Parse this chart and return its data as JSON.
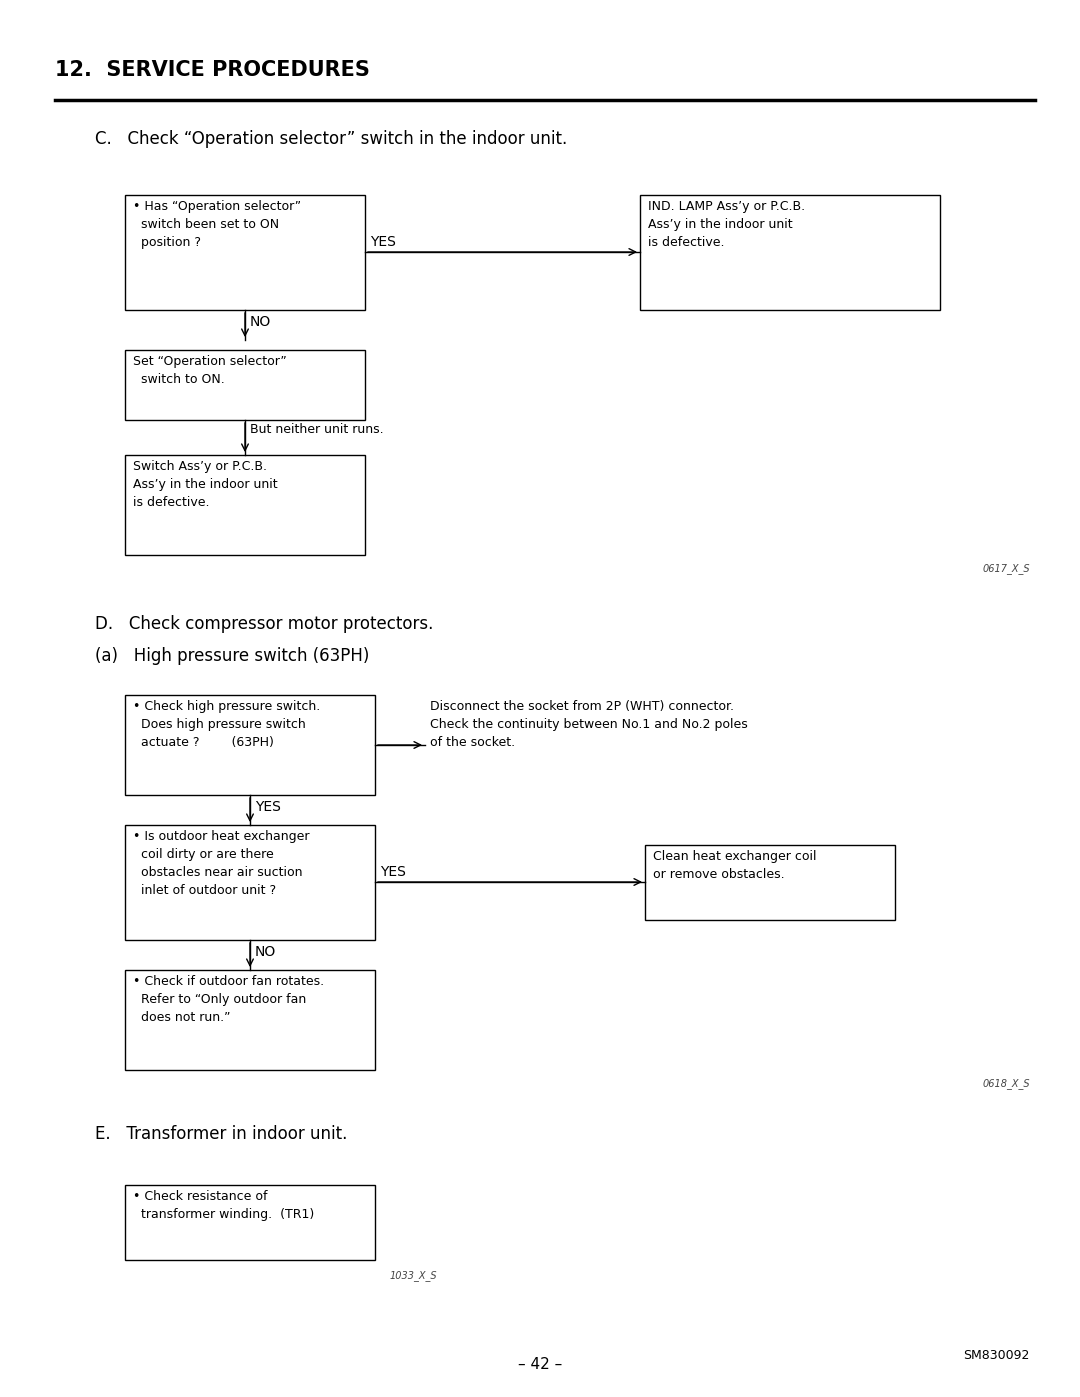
{
  "bg_color": "#ffffff",
  "title": "12.  SERVICE PROCEDURES",
  "section_c_label": "C.   Check “Operation selector” switch in the indoor unit.",
  "section_d_label": "D.   Check compressor motor protectors.",
  "section_d2_label": "(a)   High pressure switch (63PH)",
  "section_e_label": "E.   Transformer in indoor unit.",
  "diagram_code_1": "0617_X_S",
  "diagram_code_2": "0618_X_S",
  "diagram_code_3": "1033_X_S",
  "page_num": "– 42 –",
  "page_ref": "SM830092",
  "box_c1": "• Has “Operation selector”\n  switch been set to ON\n  position ?",
  "box_c2": "IND. LAMP Ass’y or P.C.B.\nAss’y in the indoor unit\nis defective.",
  "box_c3": "Set “Operation selector”\n  switch to ON.",
  "box_c4": "Switch Ass’y or P.C.B.\nAss’y in the indoor unit\nis defective.",
  "label_yes_c1": "YES",
  "label_no_c1": "NO",
  "label_but": "But neither unit runs.",
  "box_d1": "• Check high pressure switch.\n  Does high pressure switch\n  actuate ?        (63PH)",
  "box_d2_text": "Disconnect the socket from 2P (WHT) connector.\nCheck the continuity between No.1 and No.2 poles\nof the socket.",
  "box_d3": "• Is outdoor heat exchanger\n  coil dirty or are there\n  obstacles near air suction\n  inlet of outdoor unit ?",
  "box_d4": "Clean heat exchanger coil\nor remove obstacles.",
  "box_d5": "• Check if outdoor fan rotates.\n  Refer to “Only outdoor fan\n  does not run.”",
  "label_yes_d1": "YES",
  "label_yes_d3": "YES",
  "label_no_d3": "NO",
  "box_e1": "• Check resistance of\n  transformer winding.  (TR1)"
}
